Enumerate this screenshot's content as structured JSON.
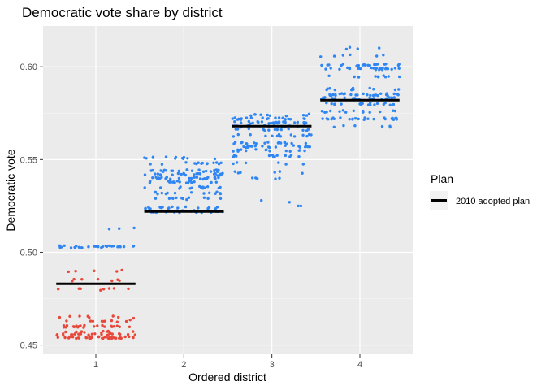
{
  "chart_data": {
    "type": "scatter",
    "title": "Democratic vote share by district",
    "xlabel": "Ordered district",
    "ylabel": "Democratic vote",
    "categories": [
      "1",
      "2",
      "3",
      "4"
    ],
    "xlim": [
      0.4,
      4.6
    ],
    "ylim": [
      0.445,
      0.622
    ],
    "y_ticks": [
      "0.45",
      "0.50",
      "0.55",
      "0.60"
    ],
    "y_tick_values": [
      0.45,
      0.5,
      0.55,
      0.6
    ],
    "grid": true,
    "point_colors": {
      "above_half": "#2f86f3",
      "below_half": "#e8483a"
    },
    "jitter_width": 0.45,
    "clusters": [
      {
        "district": 1,
        "values": [
          0.454,
          0.4555,
          0.457,
          0.46,
          0.463,
          0.465,
          0.48,
          0.485,
          0.49,
          0.503,
          0.513
        ],
        "counts": [
          40,
          20,
          14,
          22,
          10,
          8,
          8,
          7,
          5,
          28,
          3
        ]
      },
      {
        "district": 2,
        "values": [
          0.522,
          0.524,
          0.529,
          0.532,
          0.535,
          0.538,
          0.54,
          0.542,
          0.544,
          0.548,
          0.551
        ],
        "counts": [
          22,
          18,
          12,
          14,
          14,
          20,
          24,
          24,
          22,
          14,
          12
        ]
      },
      {
        "district": 3,
        "values": [
          0.54,
          0.543,
          0.548,
          0.552,
          0.555,
          0.557,
          0.559,
          0.563,
          0.566,
          0.568,
          0.57,
          0.572,
          0.574
        ],
        "counts": [
          5,
          6,
          6,
          12,
          16,
          20,
          18,
          14,
          14,
          18,
          22,
          20,
          10
        ]
      },
      {
        "district": 4,
        "values": [
          0.568,
          0.572,
          0.576,
          0.58,
          0.583,
          0.585,
          0.588,
          0.595,
          0.599,
          0.601,
          0.606,
          0.61
        ],
        "counts": [
          6,
          26,
          14,
          18,
          30,
          28,
          12,
          10,
          26,
          20,
          6,
          4
        ]
      }
    ],
    "extra_points": [
      {
        "district": 3,
        "x": 2.88,
        "y": 0.528
      },
      {
        "district": 3,
        "x": 3.2,
        "y": 0.527
      },
      {
        "district": 3,
        "x": 3.3,
        "y": 0.525
      },
      {
        "district": 3,
        "x": 3.33,
        "y": 0.525
      }
    ],
    "reference_series": {
      "name": "2010 adopted plan",
      "color": "#000000",
      "segments": [
        {
          "x": [
            0.55,
            1.45
          ],
          "y": 0.483
        },
        {
          "x": 1.55,
          "x_end": 2.45,
          "y": 0.522
        },
        {
          "x": [
            2.55,
            3.45
          ],
          "y": 0.568
        },
        {
          "x": [
            3.55,
            4.45
          ],
          "y": 0.582
        }
      ]
    },
    "legend": {
      "title": "Plan",
      "entries": [
        "2010 adopted plan"
      ],
      "placement": "right"
    }
  }
}
